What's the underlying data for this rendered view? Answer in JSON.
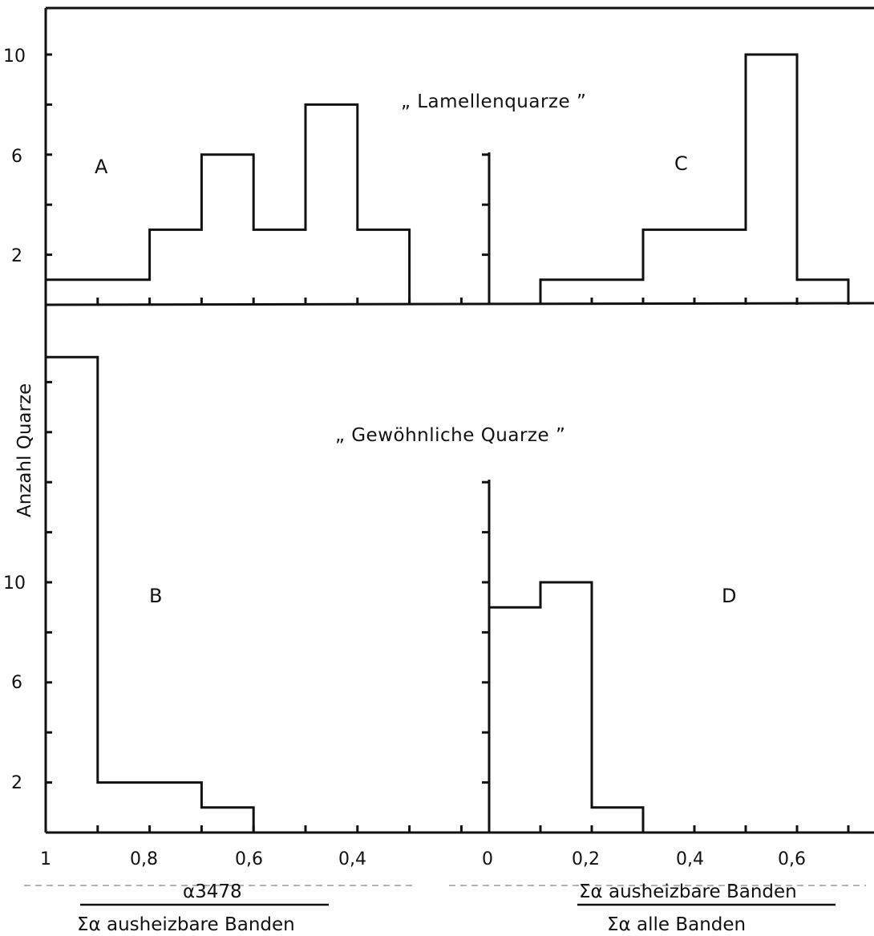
{
  "labels": {
    "title_top": "„ Lamellenquarze ”",
    "title_bottom": "„ Gewöhnliche Quarze ”",
    "ylabel": "Anzahl Quarze",
    "left_numerator": "α3478",
    "left_denominator": "Σα ausheizbare Banden",
    "right_numerator": "Σα ausheizbare Banden",
    "right_denominator": "Σα alle Banden",
    "panel_A": "A",
    "panel_B": "B",
    "panel_C": "C",
    "panel_D": "D",
    "left_xticks": [
      "1",
      "0,8",
      "0,6",
      "0,4"
    ],
    "right_xticks": [
      "0",
      "0,2",
      "0,4",
      "0,6"
    ],
    "top_yticks": [
      "10",
      "6",
      "2"
    ],
    "bottom_yticks": [
      "10",
      "6",
      "2"
    ]
  },
  "chart_data": [
    {
      "panel": "A",
      "type": "bar",
      "title": "„ Lamellenquarze ”",
      "xlabel": "α3478 / Σα ausheizbare Banden",
      "ylabel": "Anzahl Quarze",
      "bins": [
        [
          1.0,
          0.9
        ],
        [
          0.9,
          0.8
        ],
        [
          0.8,
          0.7
        ],
        [
          0.7,
          0.6
        ],
        [
          0.6,
          0.5
        ],
        [
          0.5,
          0.4
        ],
        [
          0.4,
          0.3
        ]
      ],
      "values": [
        1,
        1,
        3,
        6,
        3,
        8,
        3
      ],
      "xlim": [
        1.0,
        0.0
      ],
      "ylim": [
        0,
        12
      ]
    },
    {
      "panel": "B",
      "type": "bar",
      "title": "„ Gewöhnliche Quarze ”",
      "xlabel": "α3478 / Σα ausheizbare Banden",
      "ylabel": "Anzahl Quarze",
      "bins": [
        [
          1.0,
          0.9
        ],
        [
          0.9,
          0.8
        ],
        [
          0.8,
          0.7
        ],
        [
          0.7,
          0.6
        ]
      ],
      "values": [
        19,
        2,
        2,
        1
      ],
      "xlim": [
        1.0,
        0.0
      ],
      "ylim": [
        0,
        21
      ]
    },
    {
      "panel": "C",
      "type": "bar",
      "title": "„ Lamellenquarze ”",
      "xlabel": "Σα ausheizbare Banden / Σα alle Banden",
      "ylabel": "Anzahl Quarze",
      "bins": [
        [
          0.1,
          0.2
        ],
        [
          0.2,
          0.3
        ],
        [
          0.3,
          0.4
        ],
        [
          0.4,
          0.5
        ],
        [
          0.5,
          0.6
        ],
        [
          0.6,
          0.7
        ]
      ],
      "values": [
        1,
        1,
        3,
        3,
        10,
        1
      ],
      "xlim": [
        0.0,
        0.75
      ],
      "ylim": [
        0,
        6
      ]
    },
    {
      "panel": "D",
      "type": "bar",
      "title": "„ Gewöhnliche Quarze ”",
      "xlabel": "Σα ausheizbare Banden / Σα alle Banden",
      "ylabel": "Anzahl Quarze",
      "bins": [
        [
          0.0,
          0.1
        ],
        [
          0.1,
          0.2
        ],
        [
          0.2,
          0.3
        ]
      ],
      "values": [
        9,
        10,
        1
      ],
      "xlim": [
        0.0,
        0.75
      ],
      "ylim": [
        0,
        14
      ]
    }
  ]
}
